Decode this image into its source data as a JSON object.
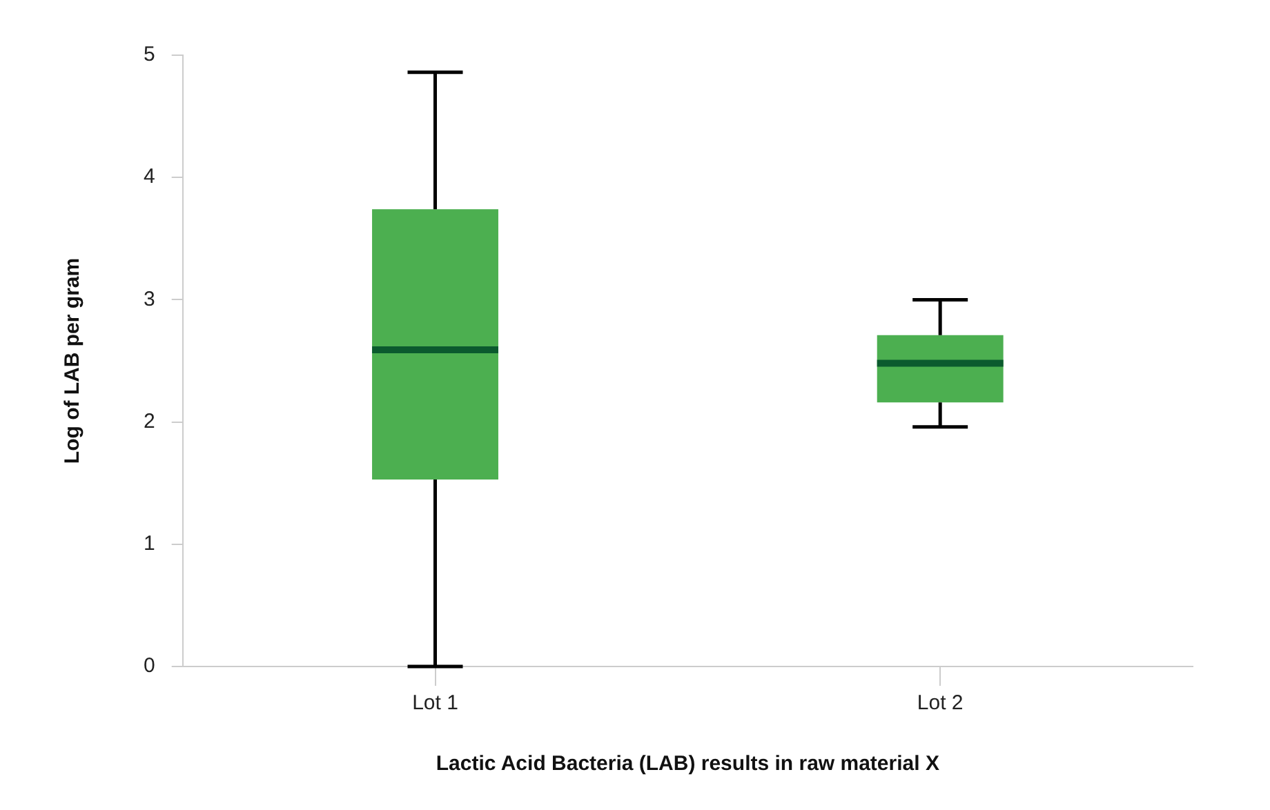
{
  "chart_data": {
    "type": "box",
    "xlabel": "Lactic Acid Bacteria (LAB) results in raw material X",
    "ylabel": "Log of LAB per gram",
    "categories": [
      "Lot 1",
      "Lot 2"
    ],
    "color": "#4caf50",
    "boxes": [
      {
        "low": 0,
        "q1": 1.53,
        "median": 2.59,
        "q3": 3.74,
        "high": 4.86
      },
      {
        "low": 1.96,
        "q1": 2.16,
        "median": 2.48,
        "q3": 2.71,
        "high": 3.0
      }
    ],
    "ylim": [
      0,
      5
    ],
    "yticks": [
      0,
      1,
      2,
      3,
      4,
      5
    ]
  }
}
